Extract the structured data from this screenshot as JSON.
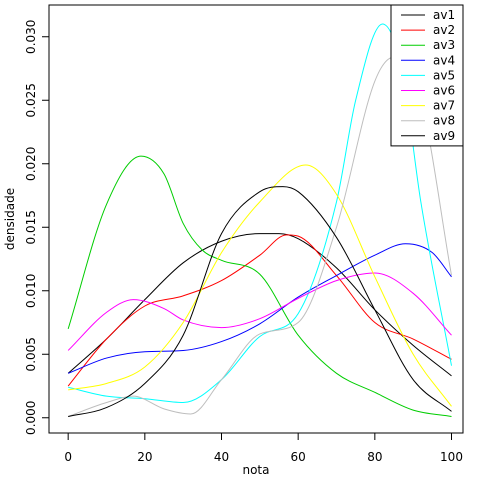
{
  "chart_data": {
    "type": "line",
    "title": "",
    "xlabel": "nota",
    "ylabel": "densidade",
    "xlim": [
      -5,
      103
    ],
    "ylim": [
      -0.0012,
      0.0325
    ],
    "xticks": [
      0,
      20,
      40,
      60,
      80,
      100
    ],
    "xtick_labels": [
      "0",
      "20",
      "40",
      "60",
      "80",
      "100"
    ],
    "yticks": [
      0.0,
      0.005,
      0.01,
      0.015,
      0.02,
      0.025,
      0.03
    ],
    "ytick_labels": [
      "0.000",
      "0.005",
      "0.010",
      "0.015",
      "0.020",
      "0.025",
      "0.030"
    ],
    "grid": false,
    "legend_position": "top-right",
    "series": [
      {
        "name": "av1",
        "color": "#000000",
        "x": [
          0,
          10,
          20,
          30,
          40,
          50,
          55,
          60,
          70,
          80,
          90,
          100
        ],
        "y": [
          0.0035,
          0.0062,
          0.0093,
          0.0122,
          0.0139,
          0.0145,
          0.0145,
          0.0141,
          0.0118,
          0.0085,
          0.0057,
          0.0033
        ]
      },
      {
        "name": "av2",
        "color": "#ff0000",
        "x": [
          0,
          10,
          20,
          30,
          40,
          50,
          57,
          60,
          70,
          80,
          90,
          100
        ],
        "y": [
          0.0025,
          0.0062,
          0.0088,
          0.0096,
          0.0108,
          0.0128,
          0.0144,
          0.0143,
          0.0112,
          0.0075,
          0.0062,
          0.0046
        ]
      },
      {
        "name": "av3",
        "color": "#00cd00",
        "x": [
          0,
          10,
          19,
          25,
          30,
          35,
          40,
          50,
          60,
          70,
          80,
          90,
          100
        ],
        "y": [
          0.007,
          0.0168,
          0.0206,
          0.0192,
          0.0153,
          0.0132,
          0.0124,
          0.0113,
          0.0065,
          0.0035,
          0.002,
          0.0006,
          0.0001
        ]
      },
      {
        "name": "av4",
        "color": "#0000ff",
        "x": [
          0,
          10,
          20,
          30,
          40,
          50,
          60,
          70,
          80,
          88,
          95,
          100
        ],
        "y": [
          0.0035,
          0.0047,
          0.0052,
          0.0053,
          0.006,
          0.0074,
          0.0095,
          0.0112,
          0.0128,
          0.0137,
          0.013,
          0.0111
        ]
      },
      {
        "name": "av5",
        "color": "#00ffff",
        "x": [
          0,
          10,
          20,
          30,
          40,
          50,
          60,
          70,
          75,
          82,
          87,
          92,
          100
        ],
        "y": [
          0.0024,
          0.0017,
          0.0015,
          0.0012,
          0.003,
          0.0064,
          0.0082,
          0.017,
          0.025,
          0.031,
          0.0275,
          0.017,
          0.0041
        ]
      },
      {
        "name": "av6",
        "color": "#ff00ff",
        "x": [
          0,
          10,
          17,
          25,
          30,
          40,
          50,
          60,
          70,
          80,
          90,
          100
        ],
        "y": [
          0.0053,
          0.0083,
          0.0093,
          0.0086,
          0.0077,
          0.0071,
          0.0078,
          0.0094,
          0.0108,
          0.0114,
          0.0098,
          0.0065
        ]
      },
      {
        "name": "av7",
        "color": "#ffff00",
        "x": [
          0,
          10,
          20,
          30,
          40,
          50,
          62,
          70,
          80,
          90,
          100
        ],
        "y": [
          0.0022,
          0.0027,
          0.004,
          0.0075,
          0.013,
          0.017,
          0.0199,
          0.0176,
          0.0111,
          0.005,
          0.0009
        ]
      },
      {
        "name": "av8",
        "color": "#bebebe",
        "x": [
          0,
          10,
          17,
          25,
          32,
          40,
          50,
          60,
          70,
          80,
          85,
          92,
          100
        ],
        "y": [
          0.0001,
          0.0012,
          0.0017,
          0.0007,
          0.0003,
          0.003,
          0.0066,
          0.0075,
          0.015,
          0.0265,
          0.0284,
          0.025,
          0.0112
        ]
      },
      {
        "name": "av9",
        "color": "#000000",
        "x": [
          0,
          10,
          20,
          30,
          40,
          50,
          56,
          60,
          70,
          80,
          90,
          100
        ],
        "y": [
          0.0001,
          0.0008,
          0.0027,
          0.0065,
          0.0145,
          0.0178,
          0.0182,
          0.0178,
          0.0142,
          0.0085,
          0.003,
          0.0005
        ]
      }
    ]
  }
}
